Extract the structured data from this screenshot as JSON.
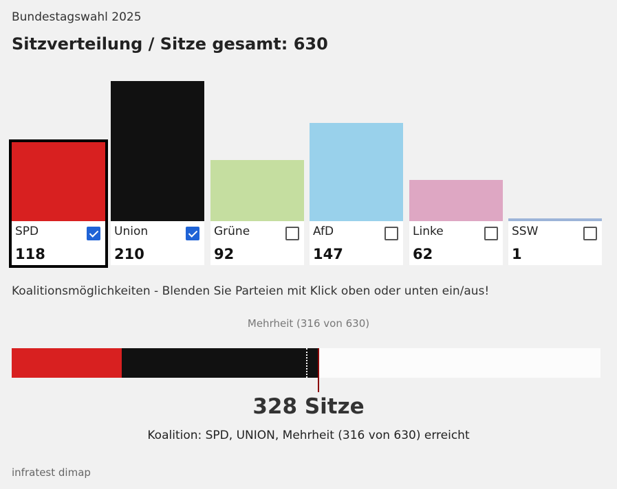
{
  "header": {
    "subtitle": "Bundestagswahl 2025",
    "title": "Sitzverteilung / Sitze gesamt: 630"
  },
  "chart_data": {
    "type": "bar",
    "total_seats": 630,
    "categories": [
      "SPD",
      "Union",
      "Grüne",
      "AfD",
      "Linke",
      "SSW"
    ],
    "values": [
      118,
      210,
      92,
      147,
      62,
      1
    ],
    "colors": [
      "#d82020",
      "#111111",
      "#c5dea0",
      "#99d1eb",
      "#dea7c3",
      "#9cb4d8"
    ],
    "checked": [
      true,
      true,
      false,
      false,
      false,
      false
    ],
    "selected_index": 0
  },
  "cards": [
    {
      "name": "SPD",
      "seats": "118"
    },
    {
      "name": "Union",
      "seats": "210"
    },
    {
      "name": "Grüne",
      "seats": "92"
    },
    {
      "name": "AfD",
      "seats": "147"
    },
    {
      "name": "Linke",
      "seats": "62"
    },
    {
      "name": "SSW",
      "seats": "1"
    }
  ],
  "coalition": {
    "instruction": "Koalitionsmöglichkeiten - Blenden Sie Parteien mit Klick oben oder unten ein/aus!",
    "majority_label": "Mehrheit (316 von 630)",
    "majority_seats": 316,
    "segments": [
      {
        "party": "SPD",
        "seats": 118,
        "color": "#d82020"
      },
      {
        "party": "Union",
        "seats": 210,
        "color": "#111111"
      }
    ],
    "total_label": "328 Sitze",
    "result_text": "Koalition: SPD, UNION, Mehrheit (316 von 630) erreicht"
  },
  "footer": {
    "source": "infratest dimap"
  }
}
